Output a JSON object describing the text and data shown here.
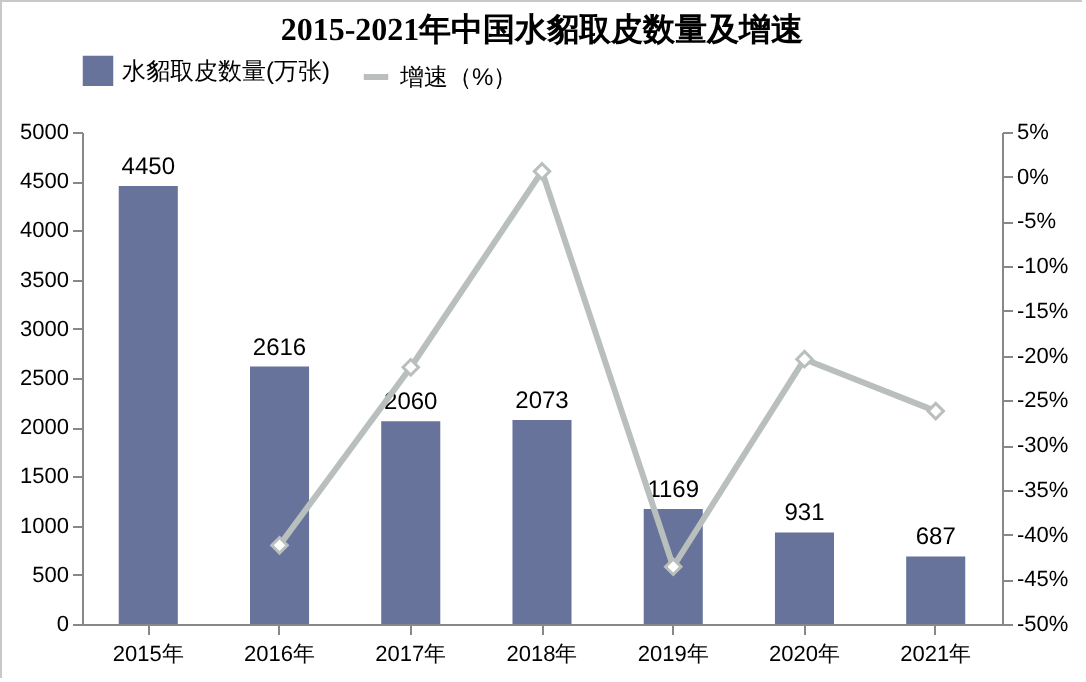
{
  "chart_data": {
    "type": "bar",
    "title": "2015-2021年中国水貂取皮数量及增速",
    "categories": [
      "2015年",
      "2016年",
      "2017年",
      "2018年",
      "2019年",
      "2020年",
      "2021年"
    ],
    "series": [
      {
        "name": "水貂取皮数量(万张)",
        "color": "#67739a",
        "values": [
          4450,
          2616,
          2060,
          2073,
          1169,
          931,
          687
        ],
        "value_labels": [
          "4450",
          "2616",
          "2060",
          "2073",
          "1169",
          "931",
          "687"
        ]
      },
      {
        "name": "增速（%）",
        "type": "line",
        "axis": "y2",
        "color": "#b8bfbc",
        "marker": "diamond",
        "values": [
          null,
          -41.2,
          -21.3,
          0.6,
          -43.6,
          -20.4,
          -26.2
        ]
      }
    ],
    "ylim": [
      0,
      5000
    ],
    "yticks": [
      0,
      500,
      1000,
      1500,
      2000,
      2500,
      3000,
      3500,
      4000,
      4500,
      5000
    ],
    "y2lim": [
      -50,
      5
    ],
    "y2ticks": [
      {
        "value": 5,
        "label": "5%"
      },
      {
        "value": 0,
        "label": "0%"
      },
      {
        "value": -5,
        "label": "-5%"
      },
      {
        "value": -10,
        "label": "-10%"
      },
      {
        "value": -15,
        "label": "-15%"
      },
      {
        "value": -20,
        "label": "-20%"
      },
      {
        "value": -25,
        "label": "-25%"
      },
      {
        "value": -30,
        "label": "-30%"
      },
      {
        "value": -35,
        "label": "-35%"
      },
      {
        "value": -40,
        "label": "-40%"
      },
      {
        "value": -45,
        "label": "-45%"
      },
      {
        "value": -50,
        "label": "-50%"
      }
    ],
    "grid": false,
    "legend": "top"
  }
}
